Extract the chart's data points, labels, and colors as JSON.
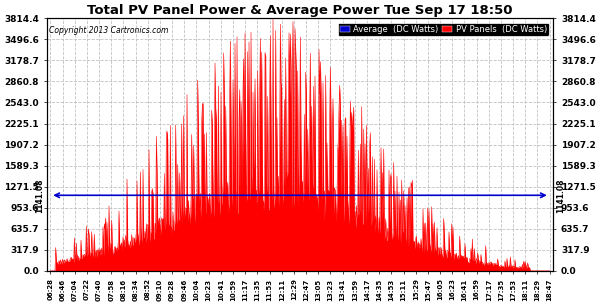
{
  "title": "Total PV Panel Power & Average Power Tue Sep 17 18:50",
  "copyright": "Copyright 2013 Cartronics.com",
  "bg_color": "#ffffff",
  "plot_bg_color": "#ffffff",
  "grid_color": "#bbbbbb",
  "bar_color": "#ff0000",
  "avg_line_color": "#0000cc",
  "avg_value": 1141.08,
  "avg_label": "1141.08",
  "ymax": 3814.4,
  "yticks": [
    0.0,
    317.9,
    635.7,
    953.6,
    1271.5,
    1589.3,
    1907.2,
    2225.1,
    2543.0,
    2860.8,
    3178.7,
    3496.6,
    3814.4
  ],
  "legend_avg_label": "Average  (DC Watts)",
  "legend_pv_label": "PV Panels  (DC Watts)",
  "time_labels": [
    "06:28",
    "06:46",
    "07:04",
    "07:22",
    "07:40",
    "07:58",
    "08:16",
    "08:34",
    "08:52",
    "09:10",
    "09:28",
    "09:46",
    "10:04",
    "10:23",
    "10:41",
    "10:59",
    "11:17",
    "11:35",
    "11:53",
    "12:11",
    "12:29",
    "12:47",
    "13:05",
    "13:23",
    "13:41",
    "13:59",
    "14:17",
    "14:35",
    "14:53",
    "15:11",
    "15:29",
    "15:47",
    "16:05",
    "16:23",
    "16:41",
    "16:59",
    "17:17",
    "17:35",
    "17:53",
    "18:11",
    "18:29",
    "18:47"
  ]
}
